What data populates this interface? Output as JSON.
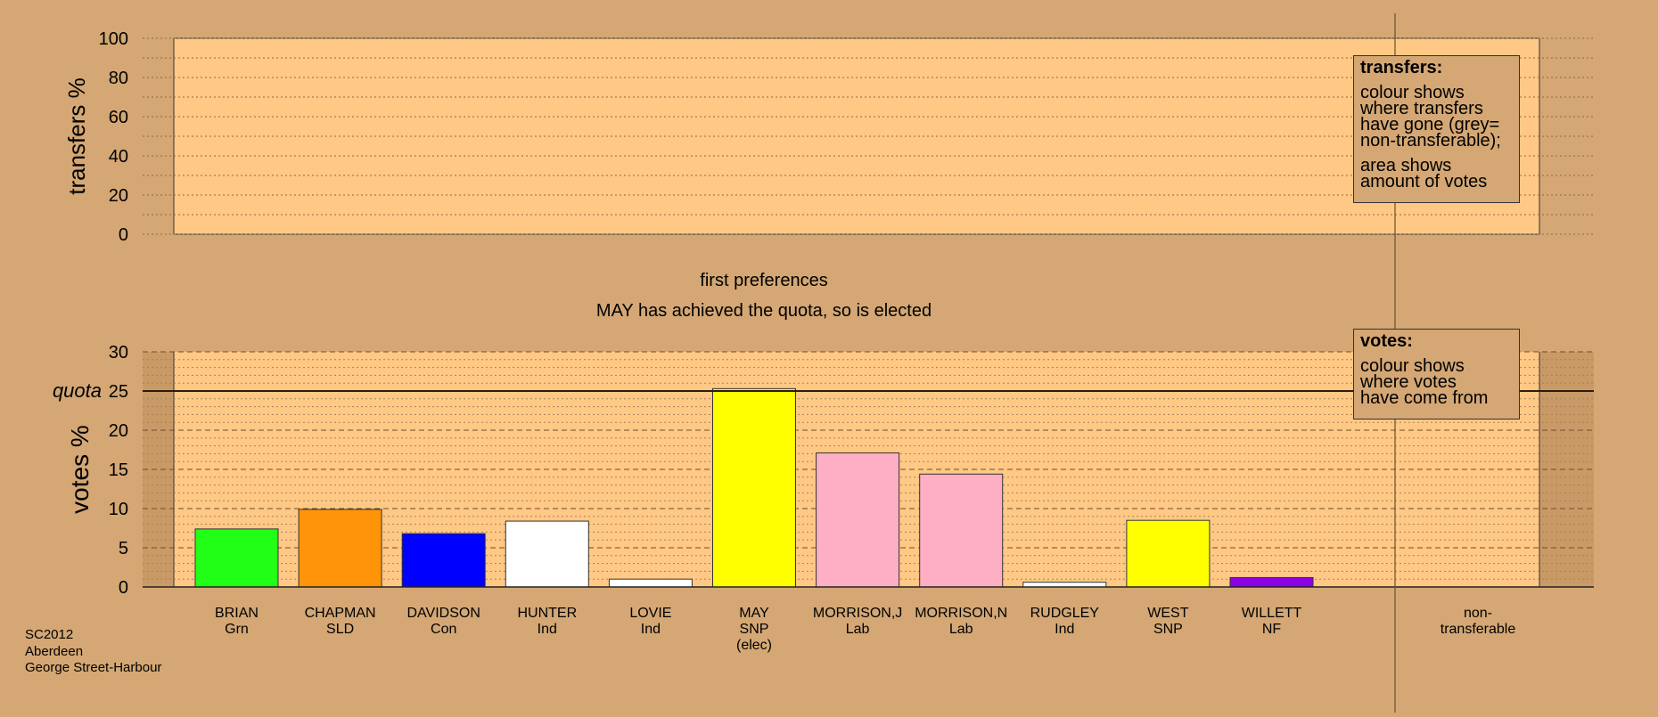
{
  "chart_data": {
    "type": "bar",
    "top_panel": {
      "ylabel": "transfers %",
      "y_ticks": [
        "100",
        "80",
        "60",
        "40",
        "20",
        "0"
      ],
      "ylim": [
        0,
        100
      ],
      "legend": {
        "title": "transfers:",
        "lines": [
          "colour shows",
          "where transfers",
          "have gone (grey=",
          "non-transferable);"
        ],
        "lines2": [
          "area shows",
          "amount of votes"
        ]
      }
    },
    "captions": {
      "line1": "first preferences",
      "line2": "MAY has achieved the quota, so is elected"
    },
    "bottom_panel": {
      "ylabel": "votes %",
      "quota_label": "quota",
      "quota_value": 25,
      "y_ticks": [
        "30",
        "25",
        "20",
        "15",
        "10",
        "5",
        "0"
      ],
      "ylim": [
        0,
        30
      ],
      "legend": {
        "title": "votes:",
        "lines": [
          "colour shows",
          "where votes",
          "have come from"
        ]
      }
    },
    "categories": [
      {
        "name": "BRIAN",
        "party": "Grn",
        "note": "",
        "value": 7.4,
        "color": "#22ff16"
      },
      {
        "name": "CHAPMAN",
        "party": "SLD",
        "note": "",
        "value": 9.9,
        "color": "#ff9408"
      },
      {
        "name": "DAVIDSON",
        "party": "Con",
        "note": "",
        "value": 6.8,
        "color": "#0000ff"
      },
      {
        "name": "HUNTER",
        "party": "Ind",
        "note": "",
        "value": 8.4,
        "color": "#ffffff"
      },
      {
        "name": "LOVIE",
        "party": "Ind",
        "note": "",
        "value": 1.0,
        "color": "#ffffff"
      },
      {
        "name": "MAY",
        "party": "SNP",
        "note": "(elec)",
        "value": 25.3,
        "color": "#ffff00"
      },
      {
        "name": "MORRISON,J",
        "party": "Lab",
        "note": "",
        "value": 17.1,
        "color": "#ffafc3"
      },
      {
        "name": "MORRISON,N",
        "party": "Lab",
        "note": "",
        "value": 14.4,
        "color": "#ffafc3"
      },
      {
        "name": "RUDGLEY",
        "party": "Ind",
        "note": "",
        "value": 0.6,
        "color": "#ffffff"
      },
      {
        "name": "WEST",
        "party": "SNP",
        "note": "",
        "value": 8.5,
        "color": "#ffff00"
      },
      {
        "name": "WILLETT",
        "party": "NF",
        "note": "",
        "value": 1.2,
        "color": "#8c00e6"
      }
    ],
    "non_transferable": {
      "line1": "non-",
      "line2": "transferable",
      "value": 0
    }
  },
  "footer": {
    "line1": "SC2012",
    "line2": "Aberdeen",
    "line3": "George Street-Harbour"
  },
  "colors": {
    "background": "#d4a774",
    "panel": "#ffc885"
  }
}
